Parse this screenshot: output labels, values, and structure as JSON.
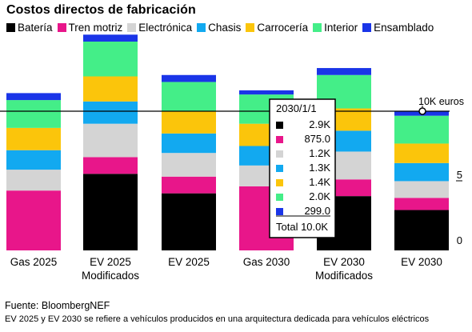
{
  "title": "Costos directos de fabricación",
  "source": "Fuente: BloombergNEF",
  "note": "EV 2025 y EV 2030 se refiere a vehículos producidos en una arquitectura dedicada para vehículos eléctricos",
  "colors": {
    "Batería": "#000000",
    "Tren motriz": "#e8168a",
    "Electrónica": "#d4d4d4",
    "Chasis": "#12a9f0",
    "Carrocería": "#fbc50b",
    "Interior": "#44ee88",
    "Ensamblado": "#1a35e8"
  },
  "legend": [
    "Batería",
    "Tren motriz",
    "Electrónica",
    "Chasis",
    "Carrocería",
    "Interior",
    "Ensamblado"
  ],
  "reference": {
    "label": "10K euros",
    "value": 10
  },
  "tooltip": {
    "title": "2030/1/1",
    "rows": [
      "2.9K",
      "875.0",
      "1.2K",
      "1.3K",
      "1.4K",
      "2.0K",
      "299.0"
    ],
    "total": "Total 10.0K"
  },
  "chart_data": {
    "type": "bar",
    "stacked": true,
    "unit": "K euros",
    "categories": [
      [
        "Gas 2025"
      ],
      [
        "EV 2025",
        "Modificados"
      ],
      [
        "EV 2025"
      ],
      [
        "Gas 2030"
      ],
      [
        "EV 2030",
        "Modificados"
      ],
      [
        "EV 2030"
      ]
    ],
    "series": [
      {
        "name": "Batería",
        "values": [
          0.0,
          5.5,
          4.1,
          0.0,
          3.9,
          2.9
        ]
      },
      {
        "name": "Tren motriz",
        "values": [
          4.3,
          1.2,
          1.2,
          4.6,
          1.2,
          0.875
        ]
      },
      {
        "name": "Electrónica",
        "values": [
          1.5,
          2.4,
          1.7,
          1.5,
          2.0,
          1.2
        ]
      },
      {
        "name": "Chasis",
        "values": [
          1.4,
          1.6,
          1.4,
          1.4,
          1.5,
          1.3
        ]
      },
      {
        "name": "Carrocería",
        "values": [
          1.6,
          1.8,
          1.6,
          1.6,
          1.6,
          1.4
        ]
      },
      {
        "name": "Interior",
        "values": [
          2.0,
          2.5,
          2.1,
          2.1,
          2.4,
          2.0
        ]
      },
      {
        "name": "Ensamblado",
        "values": [
          0.5,
          0.5,
          0.5,
          0.3,
          0.5,
          0.299
        ]
      }
    ],
    "y_ticks": [
      0,
      5
    ],
    "ylim": [
      0,
      15
    ]
  }
}
